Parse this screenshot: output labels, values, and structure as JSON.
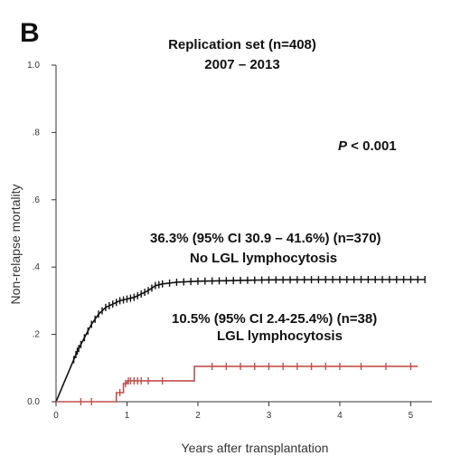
{
  "chart_data": {
    "type": "line",
    "panel_label": "B",
    "title": "Replication set (n=408)",
    "subtitle": "2007 – 2013",
    "xlabel": "Years after transplantation",
    "ylabel": "Non-relapse mortality",
    "xlim": [
      0,
      5.3
    ],
    "ylim": [
      0,
      1.0
    ],
    "x_ticks": [
      0,
      1,
      2,
      3,
      4,
      5
    ],
    "y_ticks": [
      0,
      0.2,
      0.4,
      0.6,
      0.8,
      1.0
    ],
    "y_tick_labels": [
      "0.0",
      ".2",
      ".4",
      ".6",
      ".8",
      "1.0"
    ],
    "p_value": {
      "label": "P",
      "text": " < 0.001"
    },
    "series": [
      {
        "name": "No LGL lymphocytosis",
        "annotation": "36.3% (95% CI 30.9 – 41.6%) (n=370)",
        "color": "#111111",
        "x": [
          0,
          0.1,
          0.2,
          0.3,
          0.4,
          0.5,
          0.6,
          0.7,
          0.8,
          0.9,
          1.0,
          1.1,
          1.2,
          1.3,
          1.4,
          1.5,
          1.7,
          2.0,
          2.5,
          3.0,
          4.0,
          5.2
        ],
        "y": [
          0,
          0.05,
          0.1,
          0.15,
          0.19,
          0.23,
          0.26,
          0.28,
          0.29,
          0.3,
          0.305,
          0.31,
          0.32,
          0.33,
          0.345,
          0.35,
          0.355,
          0.358,
          0.36,
          0.362,
          0.363,
          0.363
        ],
        "censor_x": [
          0.25,
          0.28,
          0.3,
          0.32,
          0.35,
          0.4,
          0.45,
          0.5,
          0.55,
          0.6,
          0.65,
          0.7,
          0.75,
          0.8,
          0.85,
          0.9,
          0.95,
          1.0,
          1.05,
          1.1,
          1.15,
          1.2,
          1.25,
          1.3,
          1.35,
          1.4,
          1.45,
          1.5,
          1.6,
          1.7,
          1.8,
          1.9,
          2.0,
          2.1,
          2.2,
          2.3,
          2.4,
          2.5,
          2.6,
          2.7,
          2.8,
          2.9,
          3.0,
          3.1,
          3.2,
          3.3,
          3.4,
          3.5,
          3.6,
          3.7,
          3.8,
          3.9,
          4.0,
          4.1,
          4.2,
          4.3,
          4.4,
          4.5,
          4.6,
          4.7,
          4.8,
          4.9,
          5.0,
          5.1,
          5.2
        ]
      },
      {
        "name": "LGL lymphocytosis",
        "annotation": "10.5% (95% CI 2.4-25.4%) (n=38)",
        "color": "#c0504d",
        "x": [
          0,
          0.8,
          0.85,
          0.95,
          1.0,
          1.95,
          5.1
        ],
        "y": [
          0,
          0,
          0.027,
          0.054,
          0.062,
          0.105,
          0.105
        ],
        "censor_x": [
          0.35,
          0.5,
          0.9,
          0.98,
          1.02,
          1.05,
          1.1,
          1.15,
          1.2,
          1.3,
          1.5,
          2.2,
          2.4,
          2.6,
          2.8,
          3.0,
          3.2,
          3.4,
          3.6,
          3.8,
          4.0,
          4.3,
          4.65,
          5.0
        ]
      }
    ]
  }
}
